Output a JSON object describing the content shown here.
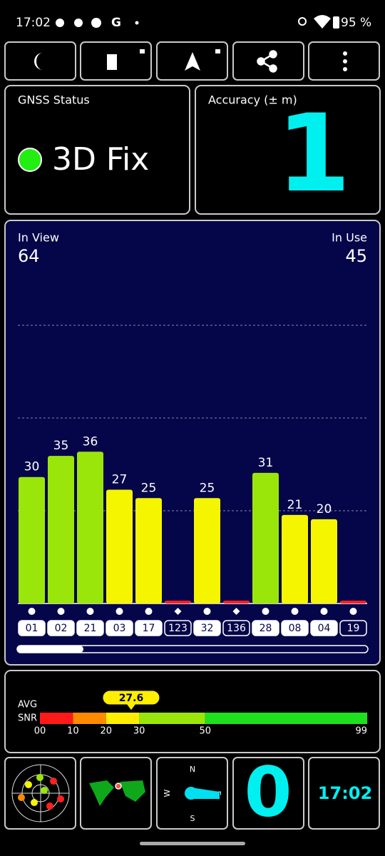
{
  "status_bar": {
    "time": "17:02",
    "battery": "95 %"
  },
  "gnss_status": {
    "title": "GNSS Status",
    "value": "3D Fix"
  },
  "accuracy": {
    "title": "Accuracy (± m)",
    "value": 1
  },
  "satellites": {
    "in_view_label": "In View",
    "in_view": 64,
    "in_use_label": "In Use",
    "in_use": 45,
    "ylim": [
      0,
      66
    ],
    "grid": [
      22,
      44,
      66
    ],
    "items": [
      {
        "id": "01",
        "snr": 30,
        "color": "#9be60a",
        "marker": "circle"
      },
      {
        "id": "02",
        "snr": 35,
        "color": "#9be60a",
        "marker": "circle"
      },
      {
        "id": "21",
        "snr": 36,
        "color": "#9be60a",
        "marker": "circle"
      },
      {
        "id": "03",
        "snr": 27,
        "color": "#f5f500",
        "marker": "circle"
      },
      {
        "id": "17",
        "snr": 25,
        "color": "#f5f500",
        "marker": "circle"
      },
      {
        "id": "123",
        "snr": 0,
        "color": "#ff2020",
        "marker": "diamond"
      },
      {
        "id": "32",
        "snr": 25,
        "color": "#f5f500",
        "marker": "circle"
      },
      {
        "id": "136",
        "snr": 0,
        "color": "#ff2020",
        "marker": "diamond"
      },
      {
        "id": "28",
        "snr": 31,
        "color": "#9be60a",
        "marker": "circle"
      },
      {
        "id": "08",
        "snr": 21,
        "color": "#f5f500",
        "marker": "circle"
      },
      {
        "id": "04",
        "snr": 20,
        "color": "#f5f500",
        "marker": "circle"
      },
      {
        "id": "19",
        "snr": 0,
        "color": "#ff2020",
        "marker": "circle"
      }
    ]
  },
  "avg_snr": {
    "label_1": "AVG",
    "label_2": "SNR",
    "value": 27.6,
    "xlim": [
      0,
      99
    ],
    "ticks": [
      {
        "value": 0,
        "label": "00"
      },
      10,
      20,
      30,
      50,
      99
    ],
    "band_colors": [
      "#ff1a1a",
      "#ff8a00",
      "#ffee00",
      "#9be60a",
      "#1ee01e"
    ]
  },
  "compass": {
    "n": "N",
    "w": "W",
    "e": "E",
    "s": "S"
  },
  "tiles": {
    "big_value": 0,
    "clock": "17:02"
  }
}
